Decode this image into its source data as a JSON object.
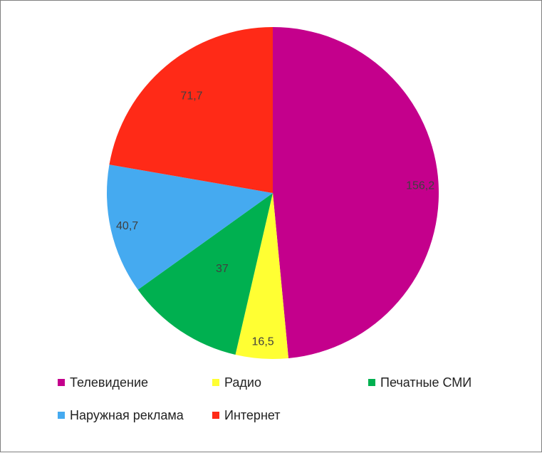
{
  "chart_data": {
    "type": "pie",
    "title": "",
    "categories": [
      "Телевидение",
      "Радио",
      "Печатные СМИ",
      "Наружная реклама",
      "Интернет"
    ],
    "values": [
      156.2,
      16.5,
      37,
      40.7,
      71.7
    ],
    "value_labels": [
      "156,2",
      "16,5",
      "37",
      "40,7",
      "71,7"
    ],
    "colors": [
      "#c4008c",
      "#ffff33",
      "#00b050",
      "#45aaf0",
      "#ff2a17"
    ],
    "start": "12 o'clock",
    "direction": "clockwise",
    "legend": {
      "position": "bottom",
      "items": [
        {
          "label": "Телевидение",
          "color": "#c4008c"
        },
        {
          "label": "Радио",
          "color": "#ffff33"
        },
        {
          "label": "Печатные СМИ",
          "color": "#00b050"
        },
        {
          "label": "Наружная реклама",
          "color": "#45aaf0"
        },
        {
          "label": "Интернет",
          "color": "#ff2a17"
        }
      ]
    }
  }
}
